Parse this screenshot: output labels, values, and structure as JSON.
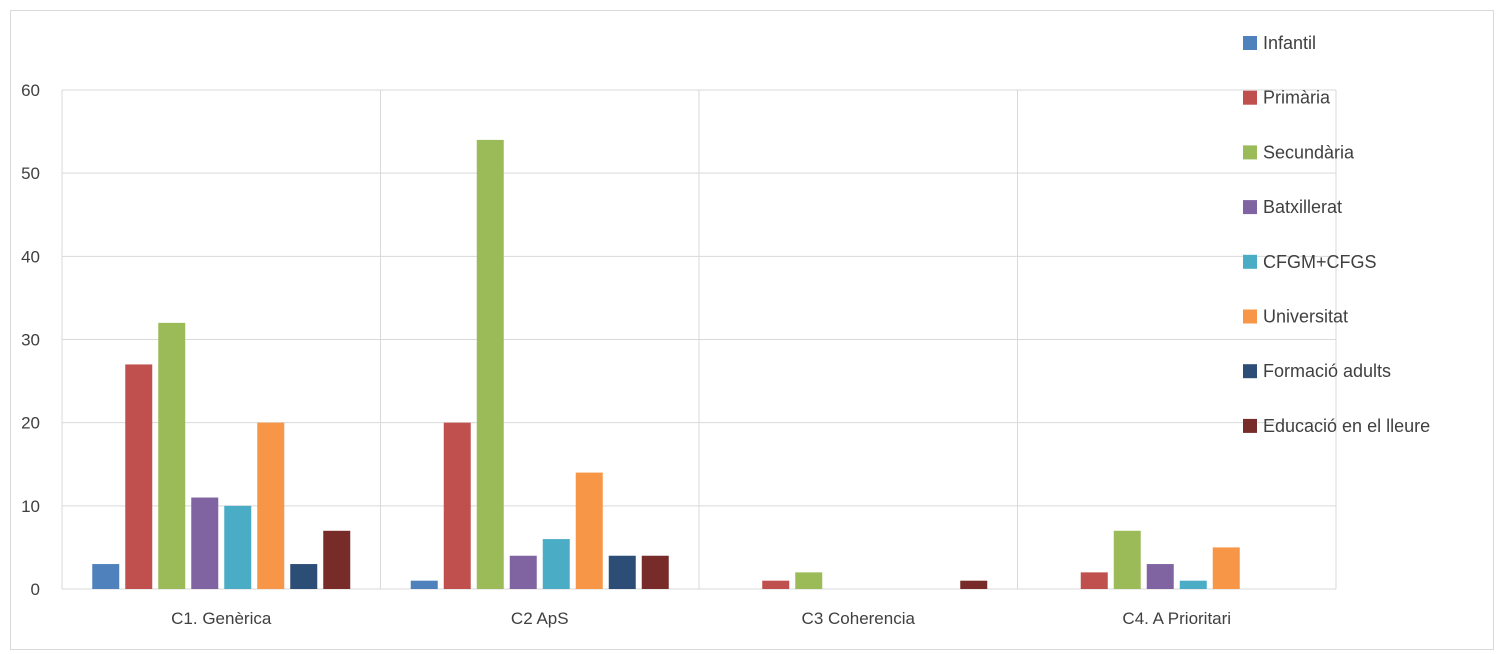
{
  "chart_data": {
    "type": "bar",
    "title": "",
    "xlabel": "",
    "ylabel": "",
    "ylim": [
      0,
      60
    ],
    "yticks": [
      "0",
      "10",
      "20",
      "30",
      "40",
      "50",
      "60"
    ],
    "grid": true,
    "legend_position": "right",
    "categories": [
      "C1. Genèrica",
      "C2 ApS",
      "C3 Coherencia",
      "C4. A Prioritari"
    ],
    "series": [
      {
        "name": "Infantil",
        "color": "#4F81BD",
        "values": [
          3,
          1,
          0,
          0
        ]
      },
      {
        "name": "Primària",
        "color": "#C0504D",
        "values": [
          27,
          20,
          1,
          2
        ]
      },
      {
        "name": "Secundària",
        "color": "#9BBB59",
        "values": [
          32,
          54,
          2,
          7
        ]
      },
      {
        "name": "Batxillerat",
        "color": "#8064A2",
        "values": [
          11,
          4,
          0,
          3
        ]
      },
      {
        "name": "CFGM+CFGS",
        "color": "#4BACC6",
        "values": [
          10,
          6,
          0,
          1
        ]
      },
      {
        "name": "Universitat",
        "color": "#F79646",
        "values": [
          20,
          14,
          0,
          5
        ]
      },
      {
        "name": "Formació adults",
        "color": "#2C4D75",
        "values": [
          3,
          4,
          0,
          0
        ]
      },
      {
        "name": "Educació en el lleure",
        "color": "#772C2A",
        "values": [
          7,
          4,
          1,
          0
        ]
      }
    ]
  }
}
